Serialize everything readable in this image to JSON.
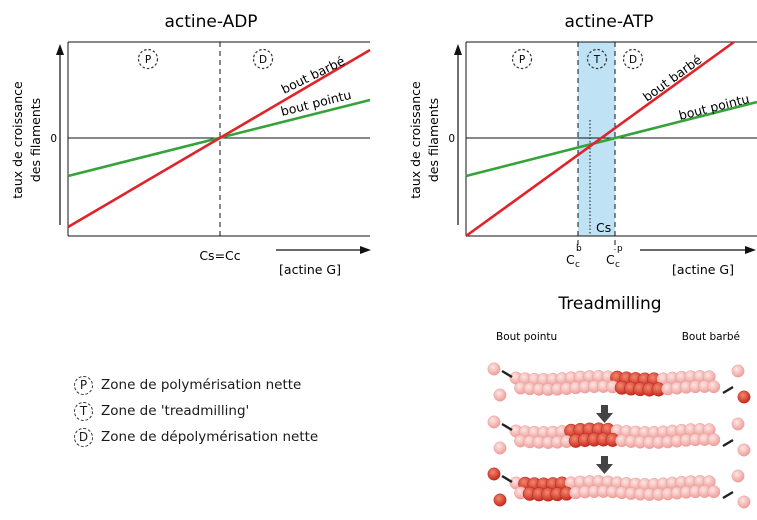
{
  "left_panel": {
    "title": "actine-ADP",
    "ylabel_line1": "taux de croissance",
    "ylabel_line2": "des filaments",
    "zero_label": "0",
    "zone_p": "P",
    "zone_d": "D",
    "barbed_label": "bout barbé",
    "pointed_label": "bout pointu",
    "critical_label": "Cs=Cc",
    "xlabel": "[actine G]"
  },
  "right_panel": {
    "title": "actine-ATP",
    "ylabel_line1": "taux de croissance",
    "ylabel_line2": "des filaments",
    "zero_label": "0",
    "zone_p": "P",
    "zone_t": "T",
    "zone_d": "D",
    "barbed_label": "bout barbé",
    "pointed_label": "bout pointu",
    "cs_label": "Cs",
    "cc_b_main": "C",
    "cc_b_sub": "c",
    "cc_b_sup": "b",
    "cc_p_main": "C",
    "cc_p_sub": "c",
    "cc_p_sup": "p",
    "xlabel": "[actine G]"
  },
  "treadmilling": {
    "title": "Treadmilling",
    "pointed_end": "Bout pointu",
    "barbed_end": "Bout barbé"
  },
  "legend": {
    "items": [
      {
        "key": "P",
        "text": "Zone de polymérisation nette"
      },
      {
        "key": "T",
        "text": "Zone de 'treadmilling'"
      },
      {
        "key": "D",
        "text": "Zone de dépolymérisation nette"
      }
    ]
  },
  "colors": {
    "barbed": "#e0232a",
    "pointed": "#35a33a",
    "treadmill_zone": "#bfe3f5",
    "axis": "#111111",
    "subunit_light": "#f6b8b6",
    "subunit_dark": "#e0483a"
  }
}
